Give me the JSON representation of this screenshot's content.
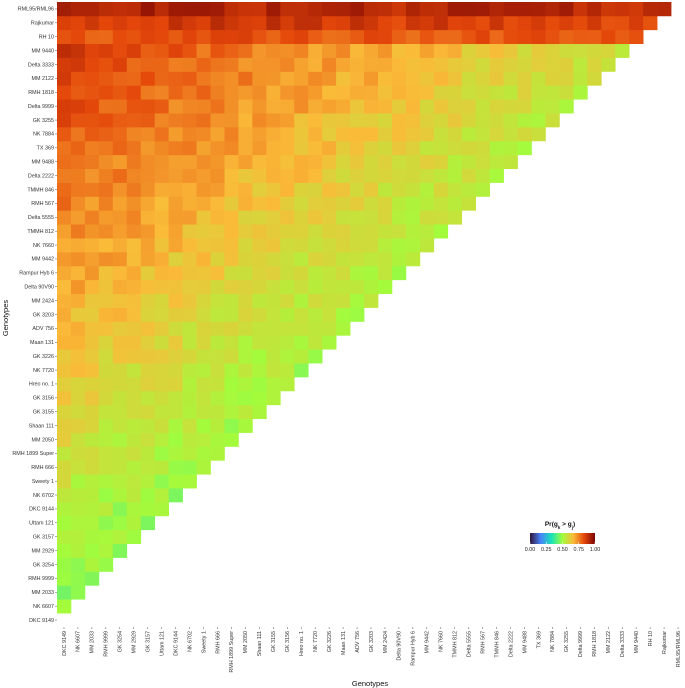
{
  "chart_data": {
    "type": "heatmap",
    "genotypes": [
      "DKC 9149",
      "NK 6607",
      "MM 2033",
      "RMH 9999",
      "GK 3254",
      "MM 2929",
      "GK 3157",
      "Uttam 121",
      "DKC 9144",
      "NK 6702",
      "Sweety 1",
      "RMH 666",
      "RMH 1899 Super",
      "MM 2050",
      "Shaan 111",
      "GK 3155",
      "GK 3156",
      "Hreo no. 1",
      "NK 7720",
      "GK 3226",
      "Maan 131",
      "ADV 756",
      "GK 3203",
      "MM 2424",
      "Delta 90V90",
      "Rampur Hyb 6",
      "MM 9442",
      "NK 7660",
      "TMMH 812",
      "Delta 5555",
      "RMH 567",
      "TMMH 846",
      "Delta 2222",
      "MM 9488",
      "TX 369",
      "NK 7884",
      "GK 3255",
      "Delta 9999",
      "RMH 1818",
      "MM 2122",
      "Delta 3333",
      "MM 9440",
      "RH 10",
      "Rajkumar",
      "RML95/RML96"
    ],
    "xlabel": "Genotypes",
    "ylabel": "Genotypes",
    "legend": {
      "title_main": "Pr(g",
      "sub_k": "k",
      "title_mid": " > g",
      "sub_j": "j",
      "title_end": ")",
      "ticks": [
        "0.00",
        "0.25",
        "0.50",
        "0.75",
        "1.00"
      ],
      "position": "right-middle"
    },
    "colorscale": [
      "#30123b",
      "#4686fb",
      "#1ae4b6",
      "#a2fc3c",
      "#fabb39",
      "#e4460a",
      "#7a0403"
    ],
    "value_range": [
      0,
      1
    ],
    "layout": "lower-triangle"
  }
}
